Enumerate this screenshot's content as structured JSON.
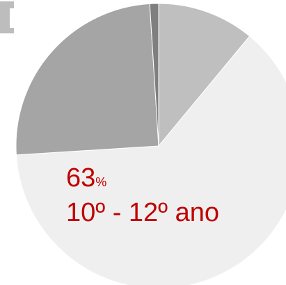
{
  "chart_data": {
    "type": "pie",
    "categories": [
      null,
      "10º - 12º ano",
      null,
      null
    ],
    "values": [
      11,
      63,
      25,
      1
    ],
    "colors": [
      "#bfbfbf",
      "#efefef",
      "#a5a5a5",
      "#7f7f7f"
    ],
    "value_unit": "%"
  }
}
